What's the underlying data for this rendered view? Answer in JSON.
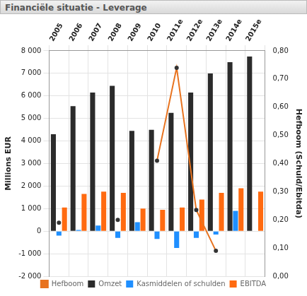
{
  "chart_data": {
    "type": "bar",
    "title": "Financiële situatie - Leverage",
    "categories": [
      "2005",
      "2006",
      "2007",
      "2008",
      "2009",
      "2010",
      "2011e",
      "2012e",
      "2013e",
      "2014e",
      "2015e"
    ],
    "ylabel": "Millions EUR",
    "y2label": "Hefboom (Schuld/Ebitda)",
    "ylim": [
      -2000,
      8000
    ],
    "yticks": [
      {
        "value": -2000,
        "label": "-2 000"
      },
      {
        "value": -1000,
        "label": "-1 000"
      },
      0,
      {
        "value": 1000,
        "label": "1 000"
      },
      {
        "value": 2000,
        "label": "2 000"
      },
      {
        "value": 3000,
        "label": "3 000"
      },
      {
        "value": 4000,
        "label": "4 000"
      },
      {
        "value": 5000,
        "label": "5 000"
      },
      {
        "value": 6000,
        "label": "6 000"
      },
      {
        "value": 7000,
        "label": "7 000"
      },
      {
        "value": 8000,
        "label": "8 000"
      }
    ],
    "y2lim": [
      0,
      0.8
    ],
    "y2ticks": [
      {
        "value": 0,
        "label": "0,00"
      },
      {
        "value": 0.1,
        "label": "0,10"
      },
      {
        "value": 0.2,
        "label": "0,20"
      },
      {
        "value": 0.3,
        "label": "0,30"
      },
      {
        "value": 0.4,
        "label": "0,40"
      },
      {
        "value": 0.5,
        "label": "0,50"
      },
      {
        "value": 0.6,
        "label": "0,60"
      },
      {
        "value": 0.7,
        "label": "0,70"
      },
      {
        "value": 0.8,
        "label": "0,80"
      }
    ],
    "grid": true,
    "legend": "bottom",
    "series": [
      {
        "name": "Omzet",
        "type": "bar",
        "color": "#2b2b2b",
        "values": [
          4300,
          5550,
          6150,
          6450,
          4450,
          4500,
          5250,
          6150,
          7000,
          7500,
          7750
        ]
      },
      {
        "name": "Kasmiddelen of schulden",
        "type": "bar",
        "color": "#1f8fff",
        "values": [
          -200,
          50,
          250,
          -300,
          400,
          -350,
          -750,
          -300,
          -150,
          900,
          null
        ]
      },
      {
        "name": "EBITDA",
        "type": "bar",
        "color": "#ff6a10",
        "values": [
          1050,
          1650,
          1750,
          1700,
          1000,
          950,
          1050,
          1400,
          1700,
          1900,
          1750
        ]
      },
      {
        "name": "Hefboom",
        "type": "line",
        "axis": "y2",
        "color": "#e8731f",
        "marker": "circle",
        "values": [
          0.19,
          null,
          null,
          0.2,
          null,
          0.41,
          0.74,
          0.235,
          0.09,
          null,
          null
        ]
      }
    ]
  }
}
